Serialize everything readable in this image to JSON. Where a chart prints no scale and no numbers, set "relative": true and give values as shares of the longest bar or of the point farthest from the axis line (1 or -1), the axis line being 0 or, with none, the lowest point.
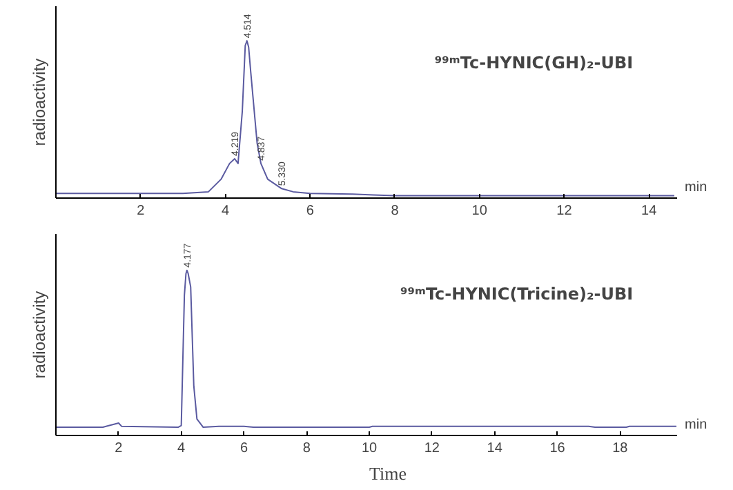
{
  "chart_data": [
    {
      "type": "line",
      "title": "⁹⁹ᵐTc-HYNIC(GH)₂-UBI",
      "ylabel": "radioactivity",
      "relative": true,
      "xlim": [
        0,
        14.65
      ],
      "xticks": [
        2,
        4,
        6,
        8,
        10,
        12,
        14
      ],
      "grid": false,
      "marker": "none",
      "line_style": "solid",
      "series": [
        {
          "color": "#5a5aa0",
          "x": [
            0.0,
            3.0,
            3.6,
            3.9,
            4.1,
            4.22,
            4.3,
            4.4,
            4.47,
            4.51,
            4.55,
            4.6,
            4.75,
            4.84,
            5.0,
            5.33,
            5.6,
            6.0,
            7.0,
            7.5,
            8.0,
            14.6
          ],
          "values": [
            0.03,
            0.03,
            0.04,
            0.12,
            0.22,
            0.25,
            0.22,
            0.55,
            0.97,
            1.0,
            0.96,
            0.8,
            0.35,
            0.22,
            0.12,
            0.06,
            0.04,
            0.03,
            0.025,
            0.02,
            0.015,
            0.015
          ]
        }
      ],
      "annotations": [
        {
          "text": "4.219",
          "x": 4.22,
          "y": 0.25
        },
        {
          "text": "4.514",
          "x": 4.51,
          "y": 1.0
        },
        {
          "text": "4.837",
          "x": 4.84,
          "y": 0.22
        },
        {
          "text": "5.330",
          "x": 5.33,
          "y": 0.06
        },
        "min"
      ]
    },
    {
      "type": "line",
      "title": "⁹⁹ᵐTc-HYNIC(Tricine)₂-UBI",
      "ylabel": "radioactivity",
      "xlabel": "Time",
      "relative": true,
      "xlim": [
        0,
        19.8
      ],
      "xticks": [
        2,
        4,
        6,
        8,
        10,
        12,
        14,
        16,
        18
      ],
      "grid": false,
      "marker": "none",
      "line_style": "solid",
      "series": [
        {
          "color": "#5a5aa0",
          "x": [
            0.0,
            1.5,
            1.6,
            2.0,
            2.1,
            3.9,
            4.0,
            4.1,
            4.15,
            4.18,
            4.22,
            4.3,
            4.4,
            4.5,
            4.7,
            5.2,
            6.0,
            6.3,
            10.0,
            10.1,
            17.0,
            17.2,
            18.2,
            18.3,
            19.8
          ],
          "values": [
            0.05,
            0.05,
            0.055,
            0.075,
            0.055,
            0.05,
            0.06,
            0.85,
            0.98,
            1.0,
            0.98,
            0.9,
            0.3,
            0.1,
            0.05,
            0.055,
            0.055,
            0.05,
            0.05,
            0.055,
            0.055,
            0.05,
            0.05,
            0.055,
            0.055
          ]
        }
      ],
      "annotations": [
        {
          "text": "4.177",
          "x": 4.18,
          "y": 1.0
        },
        "min"
      ]
    }
  ]
}
